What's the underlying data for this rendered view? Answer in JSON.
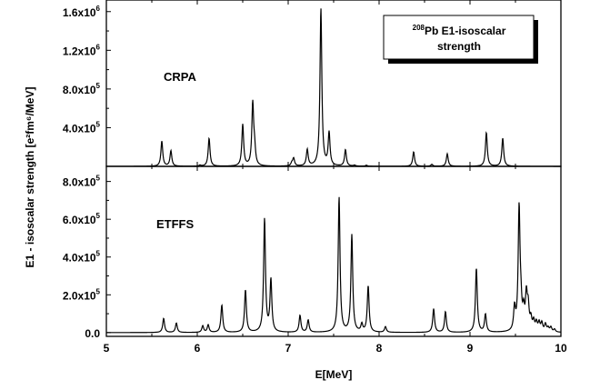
{
  "chart_data": [
    {
      "type": "line",
      "panel": "top",
      "label": "CRPA",
      "ylabel_html": "E1 - isoscalar strength [e²fm⁶/MeV]",
      "xlim": [
        5,
        10
      ],
      "ylim": [
        0,
        1720000
      ],
      "y_ticks": [
        {
          "v": 400000,
          "m": "4.0x10",
          "e": "5"
        },
        {
          "v": 800000,
          "m": "8.0x10",
          "e": "5"
        },
        {
          "v": 1200000,
          "m": "1.2x10",
          "e": "6"
        },
        {
          "v": 1600000,
          "m": "1.6x10",
          "e": "6"
        }
      ],
      "peaks": [
        [
          5.61,
          260000
        ],
        [
          5.71,
          160000
        ],
        [
          6.03,
          10000
        ],
        [
          6.13,
          290000
        ],
        [
          6.5,
          430000
        ],
        [
          6.61,
          640000
        ],
        [
          6.63,
          160000
        ],
        [
          7.04,
          30000
        ],
        [
          7.06,
          80000
        ],
        [
          7.21,
          170000
        ],
        [
          7.36,
          1630000
        ],
        [
          7.45,
          340000
        ],
        [
          7.63,
          170000
        ],
        [
          7.73,
          10000
        ],
        [
          7.86,
          10000
        ],
        [
          8.38,
          150000
        ],
        [
          8.58,
          20000
        ],
        [
          8.75,
          130000
        ],
        [
          9.18,
          350000
        ],
        [
          9.36,
          290000
        ]
      ],
      "legend": {
        "sup": "208",
        "line1": "Pb E1-isoscalar",
        "line2": "strength"
      }
    },
    {
      "type": "line",
      "panel": "bottom",
      "label": "ETFFS",
      "xlabel": "E[MeV]",
      "xlim": [
        5,
        10
      ],
      "ylim": [
        -20000,
        880000
      ],
      "y_ticks": [
        {
          "v": 0,
          "m": "0.0",
          "e": ""
        },
        {
          "v": 200000,
          "m": "2.0x10",
          "e": "5"
        },
        {
          "v": 400000,
          "m": "4.0x10",
          "e": "5"
        },
        {
          "v": 600000,
          "m": "6.0x10",
          "e": "5"
        },
        {
          "v": 800000,
          "m": "8.0x10",
          "e": "5"
        }
      ],
      "x_ticks": [
        5,
        6,
        7,
        8,
        9,
        10
      ],
      "peaks": [
        [
          5.63,
          75000
        ],
        [
          5.77,
          50000
        ],
        [
          6.06,
          35000
        ],
        [
          6.12,
          40000
        ],
        [
          6.27,
          145000
        ],
        [
          6.53,
          225000
        ],
        [
          6.74,
          600000
        ],
        [
          6.81,
          275000
        ],
        [
          7.13,
          90000
        ],
        [
          7.22,
          65000
        ],
        [
          7.56,
          715000
        ],
        [
          7.7,
          515000
        ],
        [
          7.81,
          40000
        ],
        [
          7.88,
          245000
        ],
        [
          8.07,
          30000
        ],
        [
          8.6,
          125000
        ],
        [
          8.73,
          110000
        ],
        [
          9.07,
          340000
        ],
        [
          9.17,
          95000
        ],
        [
          9.49,
          120000
        ],
        [
          9.54,
          645000
        ],
        [
          9.56,
          110000
        ],
        [
          9.59,
          95000
        ],
        [
          9.62,
          180000
        ],
        [
          9.64,
          120000
        ],
        [
          9.67,
          60000
        ],
        [
          9.7,
          50000
        ],
        [
          9.73,
          45000
        ],
        [
          9.76,
          45000
        ],
        [
          9.79,
          45000
        ],
        [
          9.83,
          40000
        ],
        [
          9.86,
          20000
        ],
        [
          9.89,
          25000
        ],
        [
          9.93,
          15000
        ]
      ]
    }
  ]
}
